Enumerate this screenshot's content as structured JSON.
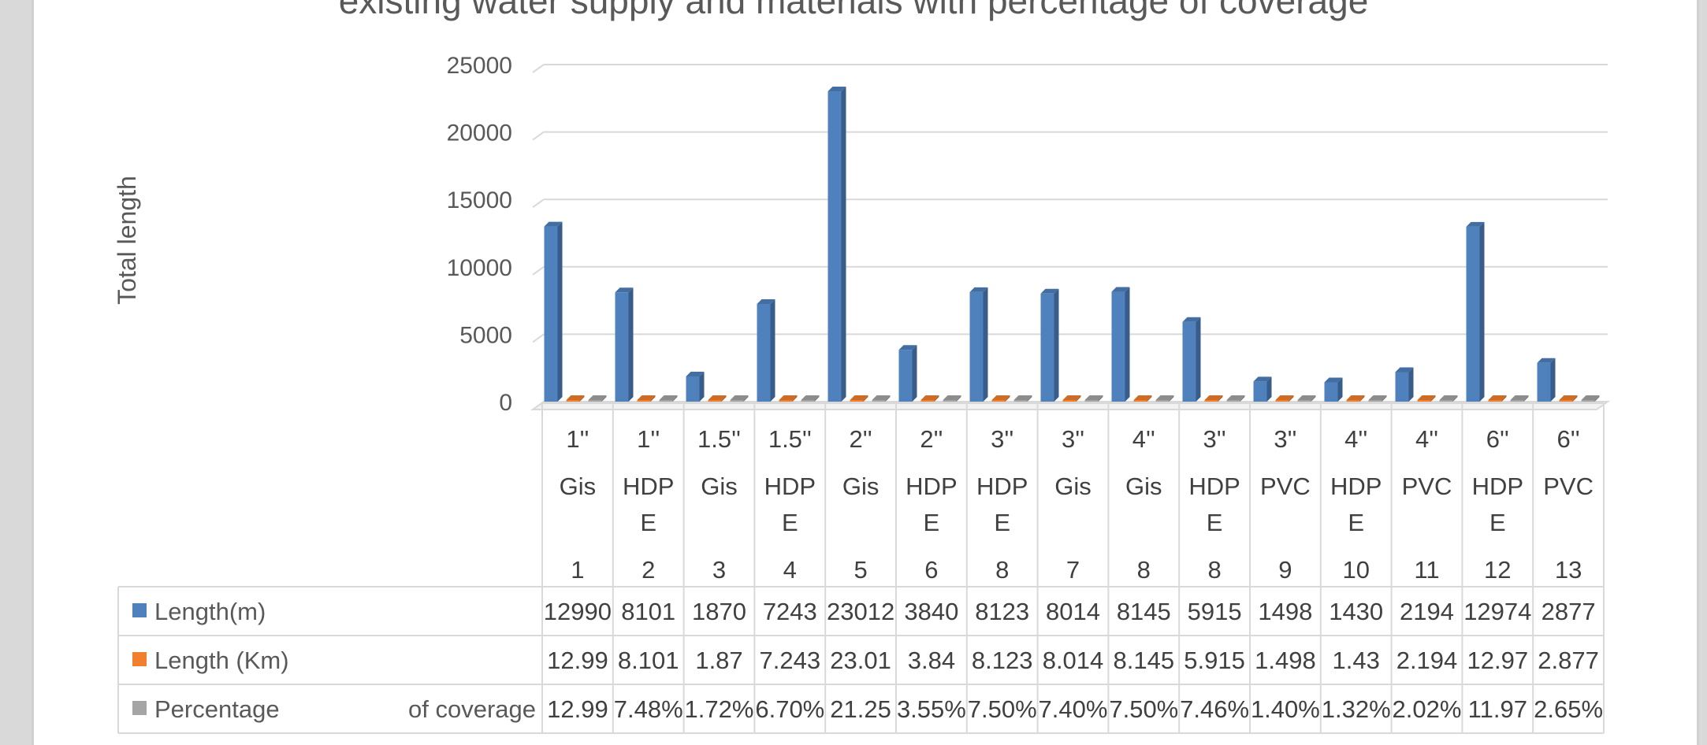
{
  "chart_data": {
    "type": "bar",
    "title": "existing water supply and materials with percentage of coverage",
    "xlabel": "",
    "ylabel": "Total length",
    "ylim": [
      0,
      25000
    ],
    "yticks": [
      "0",
      "5000",
      "10000",
      "15000",
      "20000",
      "25000"
    ],
    "grid": true,
    "legend": "data-table",
    "categories": [
      {
        "size": "1''",
        "material": [
          "Gis"
        ],
        "no": "1"
      },
      {
        "size": "1''",
        "material": [
          "HDP",
          "E"
        ],
        "no": "2"
      },
      {
        "size": "1.5''",
        "material": [
          "Gis"
        ],
        "no": "3"
      },
      {
        "size": "1.5''",
        "material": [
          "HDP",
          "E"
        ],
        "no": "4"
      },
      {
        "size": "2''",
        "material": [
          "Gis"
        ],
        "no": "5"
      },
      {
        "size": "2''",
        "material": [
          "HDP",
          "E"
        ],
        "no": "6"
      },
      {
        "size": "3''",
        "material": [
          "HDP",
          "E"
        ],
        "no": "8"
      },
      {
        "size": "3''",
        "material": [
          "Gis"
        ],
        "no": "7"
      },
      {
        "size": "4''",
        "material": [
          "Gis"
        ],
        "no": "8"
      },
      {
        "size": "3''",
        "material": [
          "HDP",
          "E"
        ],
        "no": "8"
      },
      {
        "size": "3''",
        "material": [
          "PVC"
        ],
        "no": "9"
      },
      {
        "size": "4''",
        "material": [
          "HDP",
          "E"
        ],
        "no": "10"
      },
      {
        "size": "4''",
        "material": [
          "PVC"
        ],
        "no": "11"
      },
      {
        "size": "6''",
        "material": [
          "HDP",
          "E"
        ],
        "no": "12"
      },
      {
        "size": "6''",
        "material": [
          "PVC"
        ],
        "no": "13"
      }
    ],
    "series": [
      {
        "name": "Length(m)",
        "color": "#4f81bd",
        "values": [
          12990,
          8101,
          1870,
          7243,
          23012,
          3840,
          8123,
          8014,
          8145,
          5915,
          1498,
          1430,
          2194,
          12974,
          2877
        ],
        "labels": [
          "12990",
          "8101",
          "1870",
          "7243",
          "23012",
          "3840",
          "8123",
          "8014",
          "8145",
          "5915",
          "1498",
          "1430",
          "2194",
          "12974",
          "2877"
        ]
      },
      {
        "name": "Length (Km)",
        "color": "#f07f2e",
        "values": [
          12.99,
          8.101,
          1.87,
          7.243,
          23.01,
          3.84,
          8.123,
          8.014,
          8.145,
          5.915,
          1.498,
          1.43,
          2.194,
          12.97,
          2.877
        ],
        "labels": [
          "12.99",
          "8.101",
          "1.87",
          "7.243",
          "23.01",
          "3.84",
          "8.123",
          "8.014",
          "8.145",
          "5.915",
          "1.498",
          "1.43",
          "2.194",
          "12.97",
          "2.877"
        ]
      },
      {
        "name": "Percentage of coverage",
        "color": "#a5a5a5",
        "values": [
          12.99,
          7.48,
          1.72,
          6.7,
          21.25,
          3.55,
          7.5,
          7.4,
          7.5,
          7.46,
          1.4,
          1.32,
          2.02,
          11.97,
          2.65
        ],
        "labels": [
          "12.99",
          "7.48%",
          "1.72%",
          "6.70%",
          "21.25",
          "3.55%",
          "7.50%",
          "7.40%",
          "7.50%",
          "7.46%",
          "1.40%",
          "1.32%",
          "2.02%",
          "11.97",
          "2.65%"
        ]
      }
    ]
  }
}
